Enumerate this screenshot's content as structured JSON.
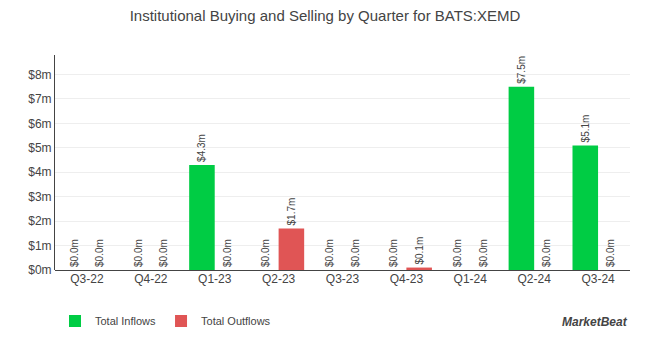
{
  "chart_data": {
    "type": "bar",
    "title": "Institutional Buying and Selling by Quarter for BATS:XEMD",
    "categories": [
      "Q3-22",
      "Q4-22",
      "Q1-23",
      "Q2-23",
      "Q3-23",
      "Q4-23",
      "Q1-24",
      "Q2-24",
      "Q3-24"
    ],
    "series": [
      {
        "name": "Total Inflows",
        "color": "#00cc44",
        "values": [
          0.0,
          0.0,
          4.3,
          0.0,
          0.0,
          0.0,
          0.0,
          7.5,
          5.1
        ],
        "value_labels": [
          "$0.0m",
          "$0.0m",
          "$4.3m",
          "$0.0m",
          "$0.0m",
          "$0.0m",
          "$0.0m",
          "$7.5m",
          "$5.1m"
        ]
      },
      {
        "name": "Total Outflows",
        "color": "#e05555",
        "values": [
          0.0,
          0.0,
          0.0,
          1.7,
          0.0,
          0.1,
          0.0,
          0.0,
          0.0
        ],
        "value_labels": [
          "$0.0m",
          "$0.0m",
          "$0.0m",
          "$1.7m",
          "$0.0m",
          "$0.1m",
          "$0.0m",
          "$0.0m",
          "$0.0m"
        ]
      }
    ],
    "ylim": [
      0,
      8.8
    ],
    "yticks": [
      {
        "value": 0,
        "label": "$0m"
      },
      {
        "value": 1,
        "label": "$1m"
      },
      {
        "value": 2,
        "label": "$2m"
      },
      {
        "value": 3,
        "label": "$3m"
      },
      {
        "value": 4,
        "label": "$4m"
      },
      {
        "value": 5,
        "label": "$5m"
      },
      {
        "value": 6,
        "label": "$6m"
      },
      {
        "value": 7,
        "label": "$7m"
      },
      {
        "value": 8,
        "label": "$8m"
      }
    ],
    "grid": true,
    "legend": "lower left",
    "data_labels": true,
    "annotations": [
      "MarketBeat"
    ]
  }
}
